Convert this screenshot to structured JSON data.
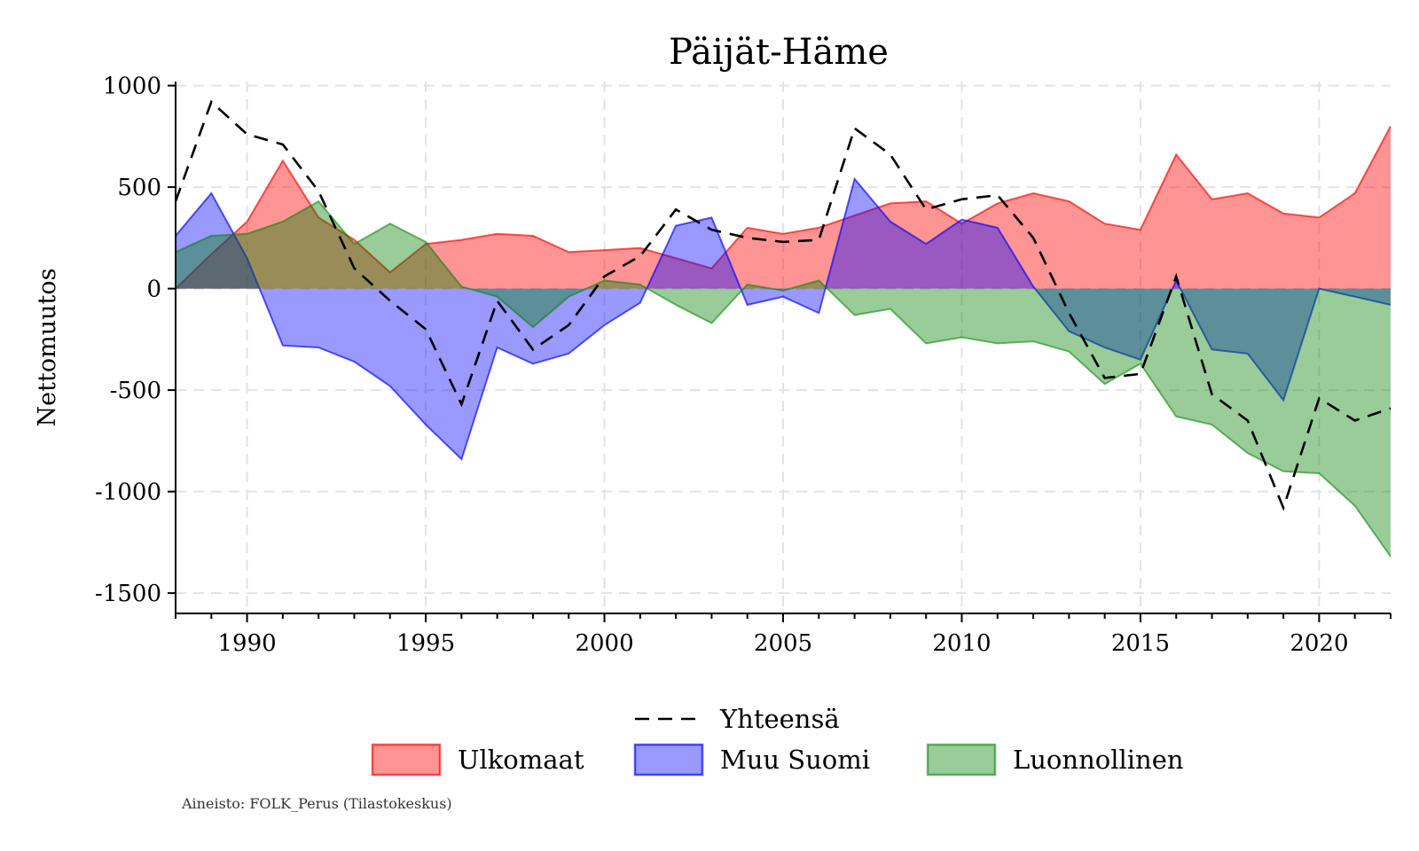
{
  "chart_data": {
    "type": "area",
    "title": "Päijät-Häme",
    "xlabel": "",
    "ylabel": "Nettomuutos",
    "xlim": [
      1988,
      2022
    ],
    "ylim": [
      -1600,
      1020
    ],
    "x_ticks": [
      1990,
      1995,
      2000,
      2005,
      2010,
      2015,
      2020
    ],
    "y_ticks": [
      1000,
      500,
      0,
      -500,
      -1000,
      -1500
    ],
    "grid": true,
    "legend_position": "bottom",
    "source": "Aineisto: FOLK_Perus (Tilastokeskus)",
    "x": [
      1988,
      1989,
      1990,
      1991,
      1992,
      1993,
      1994,
      1995,
      1996,
      1997,
      1998,
      1999,
      2000,
      2001,
      2002,
      2003,
      2004,
      2005,
      2006,
      2007,
      2008,
      2009,
      2010,
      2011,
      2012,
      2013,
      2014,
      2015,
      2016,
      2017,
      2018,
      2019,
      2020,
      2021,
      2022
    ],
    "series": [
      {
        "name": "Ulkomaat",
        "kind": "area",
        "color": "#ff0000",
        "values": [
          0,
          170,
          330,
          630,
          350,
          240,
          80,
          220,
          240,
          270,
          260,
          180,
          190,
          200,
          150,
          100,
          300,
          270,
          300,
          360,
          420,
          430,
          320,
          420,
          470,
          430,
          320,
          290,
          660,
          440,
          470,
          370,
          350,
          470,
          800
        ]
      },
      {
        "name": "Muu Suomi",
        "kind": "area",
        "color": "#0000ff",
        "values": [
          260,
          470,
          150,
          -280,
          -290,
          -360,
          -480,
          -670,
          -840,
          -290,
          -370,
          -320,
          -180,
          -70,
          310,
          350,
          -80,
          -40,
          -120,
          540,
          330,
          220,
          340,
          300,
          10,
          -210,
          -290,
          -350,
          40,
          -300,
          -320,
          -550,
          0,
          -40,
          -80
        ]
      },
      {
        "name": "Luonnollinen",
        "kind": "area",
        "color": "#008000",
        "values": [
          180,
          260,
          270,
          330,
          430,
          220,
          320,
          230,
          10,
          -40,
          -190,
          -40,
          40,
          20,
          -80,
          -170,
          20,
          -10,
          40,
          -130,
          -100,
          -270,
          -240,
          -270,
          -260,
          -310,
          -470,
          -370,
          -630,
          -670,
          -810,
          -900,
          -910,
          -1070,
          -1320
        ]
      },
      {
        "name": "Yhteensä",
        "kind": "line",
        "color": "#000000",
        "values": [
          430,
          920,
          760,
          710,
          480,
          100,
          -60,
          -200,
          -570,
          -60,
          -300,
          -180,
          60,
          160,
          390,
          290,
          250,
          230,
          240,
          790,
          660,
          390,
          440,
          460,
          250,
          -120,
          -440,
          -420,
          60,
          -520,
          -650,
          -1080,
          -540,
          -650,
          -590
        ]
      }
    ]
  }
}
